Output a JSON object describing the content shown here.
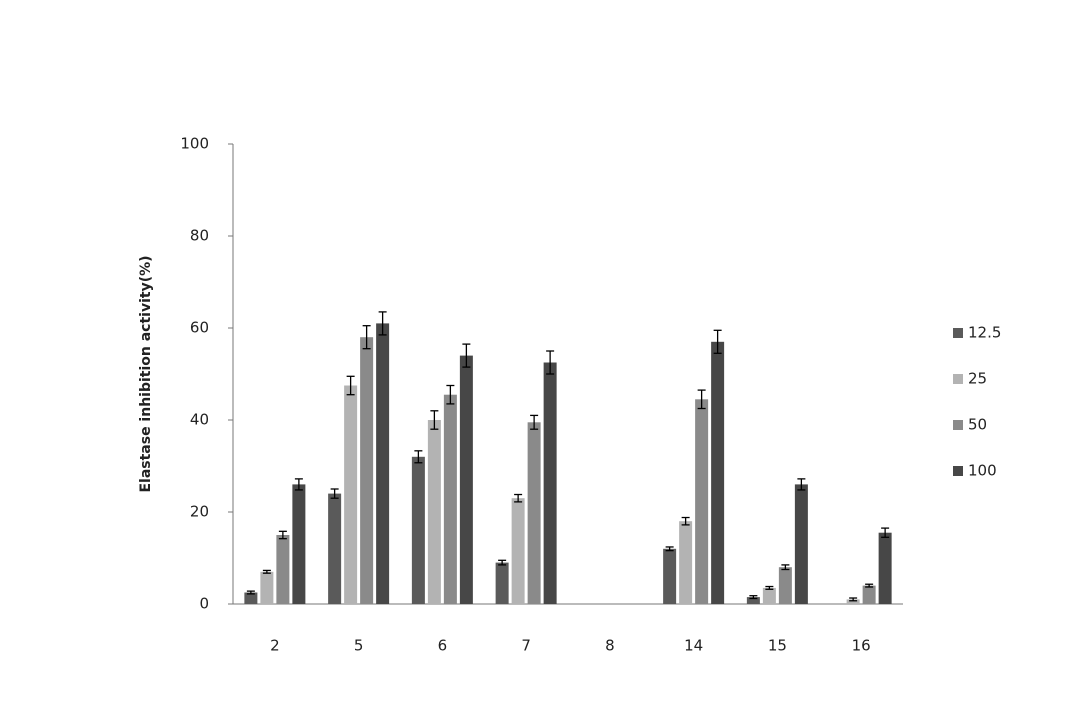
{
  "chart_data": {
    "type": "bar",
    "y_label": "Elastase inhibition activity(%)",
    "categories": [
      "2",
      "5",
      "6",
      "7",
      "8",
      "14",
      "15",
      "16"
    ],
    "series": [
      {
        "name": "12.5",
        "color": "#5a5a5a",
        "values": [
          2.5,
          24,
          32,
          9,
          null,
          12,
          1.5,
          null
        ],
        "errors": [
          0.3,
          1,
          1.3,
          0.5,
          null,
          0.4,
          0.3,
          null
        ]
      },
      {
        "name": "25",
        "color": "#b3b3b3",
        "values": [
          7,
          47.5,
          40,
          23,
          null,
          18,
          3.5,
          1
        ],
        "errors": [
          0.3,
          2,
          2,
          0.8,
          null,
          0.8,
          0.3,
          0.3
        ]
      },
      {
        "name": "50",
        "color": "#8a8a8a",
        "values": [
          15,
          58,
          45.5,
          39.5,
          null,
          44.5,
          8,
          4
        ],
        "errors": [
          0.8,
          2.5,
          2,
          1.5,
          null,
          2,
          0.5,
          0.3
        ]
      },
      {
        "name": "100",
        "color": "#474747",
        "values": [
          26,
          61,
          54,
          52.5,
          null,
          57,
          26,
          15.5
        ],
        "errors": [
          1.2,
          2.5,
          2.5,
          2.5,
          null,
          2.5,
          1.2,
          1
        ]
      }
    ],
    "ylim": [
      0,
      100
    ],
    "yticks": [
      0,
      20,
      40,
      60,
      80,
      100
    ],
    "legend": "right"
  }
}
